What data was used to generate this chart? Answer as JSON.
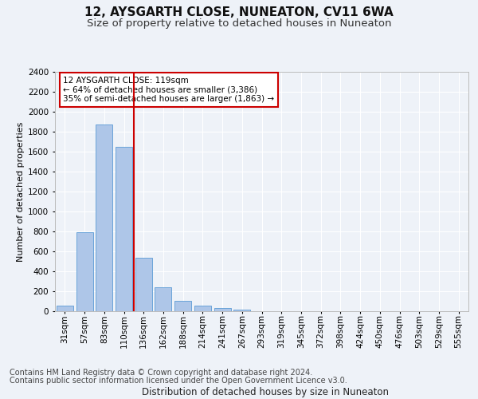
{
  "title": "12, AYSGARTH CLOSE, NUNEATON, CV11 6WA",
  "subtitle": "Size of property relative to detached houses in Nuneaton",
  "xlabel": "Distribution of detached houses by size in Nuneaton",
  "ylabel": "Number of detached properties",
  "categories": [
    "31sqm",
    "57sqm",
    "83sqm",
    "110sqm",
    "136sqm",
    "162sqm",
    "188sqm",
    "214sqm",
    "241sqm",
    "267sqm",
    "293sqm",
    "319sqm",
    "345sqm",
    "372sqm",
    "398sqm",
    "424sqm",
    "450sqm",
    "476sqm",
    "503sqm",
    "529sqm",
    "555sqm"
  ],
  "values": [
    55,
    790,
    1870,
    1645,
    535,
    238,
    108,
    60,
    35,
    18,
    0,
    0,
    0,
    0,
    0,
    0,
    0,
    0,
    0,
    0,
    0
  ],
  "bar_color": "#aec6e8",
  "bar_edge_color": "#5b9bd5",
  "vline_x_index": 3,
  "annotation_text": "12 AYSGARTH CLOSE: 119sqm\n← 64% of detached houses are smaller (3,386)\n35% of semi-detached houses are larger (1,863) →",
  "footer_line1": "Contains HM Land Registry data © Crown copyright and database right 2024.",
  "footer_line2": "Contains public sector information licensed under the Open Government Licence v3.0.",
  "ylim": [
    0,
    2400
  ],
  "yticks": [
    0,
    200,
    400,
    600,
    800,
    1000,
    1200,
    1400,
    1600,
    1800,
    2000,
    2200,
    2400
  ],
  "title_fontsize": 11,
  "subtitle_fontsize": 9.5,
  "ylabel_fontsize": 8,
  "xlabel_fontsize": 8.5,
  "tick_fontsize": 7.5,
  "footer_fontsize": 7,
  "annotation_fontsize": 7.5,
  "background_color": "#eef2f8",
  "plot_bg_color": "#eef2f8",
  "grid_color": "#ffffff",
  "annotation_box_color": "#ffffff",
  "annotation_box_edge": "#cc0000",
  "vline_color": "#cc0000"
}
